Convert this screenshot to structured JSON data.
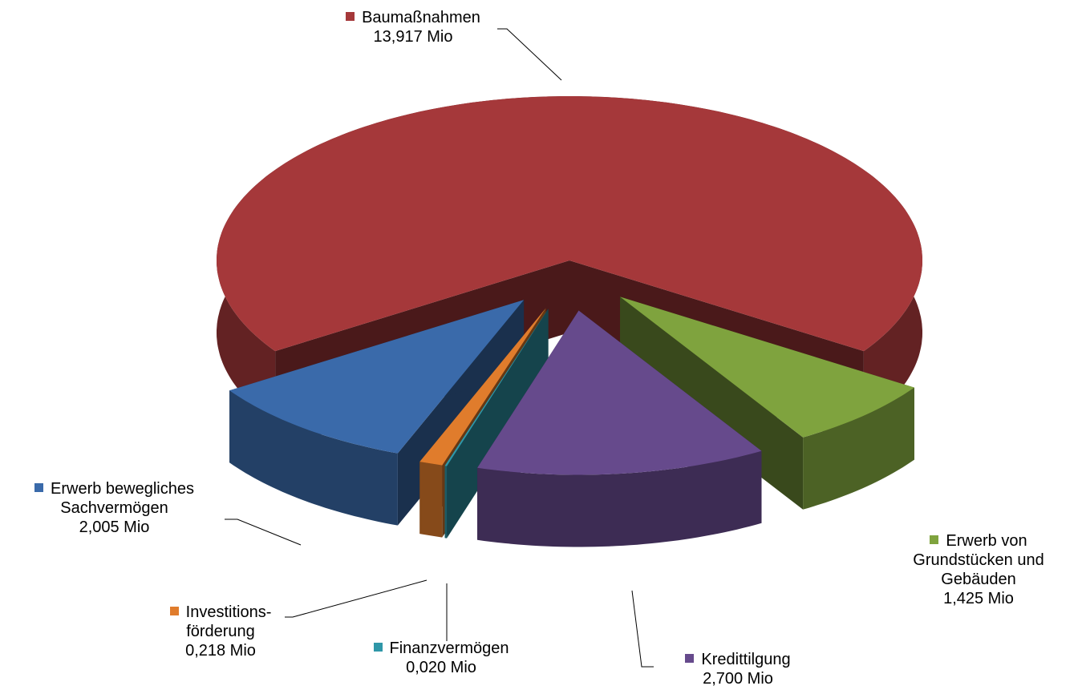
{
  "chart_data": {
    "type": "pie",
    "categories": [
      "Baumaßnahmen",
      "Erwerb von Grundstücken und Gebäuden",
      "Kredittilgung",
      "Finanzvermögen",
      "Investitions-förderung",
      "Erwerb bewegliches Sachvermögen"
    ],
    "values": [
      13.917,
      1.425,
      2.7,
      0.02,
      0.218,
      2.005
    ],
    "value_labels": [
      "13,917 Mio",
      "1,425 Mio",
      "2,700 Mio",
      "0,020 Mio",
      "0,218 Mio",
      "2,005 Mio"
    ],
    "colors": [
      "#a5383a",
      "#7fa33e",
      "#664a8c",
      "#2f97a8",
      "#e07c2c",
      "#3a6aaa"
    ]
  }
}
